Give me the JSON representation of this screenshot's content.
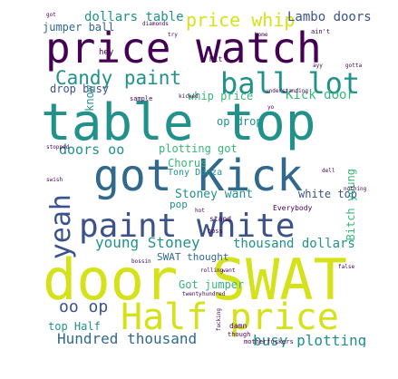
{
  "colors": {
    "dark_purple": "#440154",
    "indigo": "#3b528b",
    "blue": "#31688e",
    "teal": "#21918c",
    "green": "#35b779",
    "lime": "#90d743",
    "yellow": "#d5e21a",
    "light_green": "#5ec962"
  },
  "words": {
    "price_watch": "price watch",
    "table_top": "table top",
    "got_kick": "got Kick",
    "paint_white": "paint white",
    "door_swat": "door SWAT",
    "half_price": "Half price",
    "hundred_thousand": "Hundred thousand",
    "busy_plotting": "busy plotting",
    "candy_paint": "Candy paint",
    "ball_lot": "ball lot",
    "price_whip": "price whip",
    "lambo_doors": "Lambo doors",
    "dollars_table": "dollars table",
    "jumper_ball": "jumper ball",
    "yeah": "yeah",
    "young_stoney": "young Stoney",
    "thousand_dollars": "thousand dollars",
    "oo_op": "oo op",
    "top_half": "top Half",
    "kick_door": "Kick door",
    "whip_price": "whip price",
    "op_drop": "op drop",
    "doors_oo": "doors oo",
    "drop_busy": "drop busy",
    "plotting_got": "plotting got",
    "chorus": "Chorus",
    "tony_danza": "Tony Danza",
    "stoney_want": "Stoney want",
    "white_top": "white top",
    "bitch_young": "Bitch young",
    "swat_thought": "SWAT thought",
    "got_jumper": "Got jumper",
    "know": "know",
    "pop": "pop",
    "stand": "stand",
    "everybody": "Everybody",
    "damn": "damn",
    "motherfuckers": "motherfuckers",
    "hey": "hey",
    "hit": "Hit",
    "boss": "boss",
    "sample": "sample",
    "though": "though",
    "small_1": "got",
    "small_2": "try",
    "small_3": "home",
    "small_4": "ain't",
    "small_5": "gotta",
    "small_6": "stopped",
    "small_7": "swish",
    "small_8": "twenty",
    "small_9": "hundred",
    "small_10": "nothing",
    "small_11": "diamonds",
    "small_12": "understanding",
    "small_13": "kicked",
    "small_14": "fucking",
    "small_15": "rolling",
    "small_16": "want",
    "small_17": "bossin",
    "small_18": "dell",
    "small_19": "false",
    "small_20": "hot",
    "small_21": "yo",
    "small_22": "ayy"
  }
}
